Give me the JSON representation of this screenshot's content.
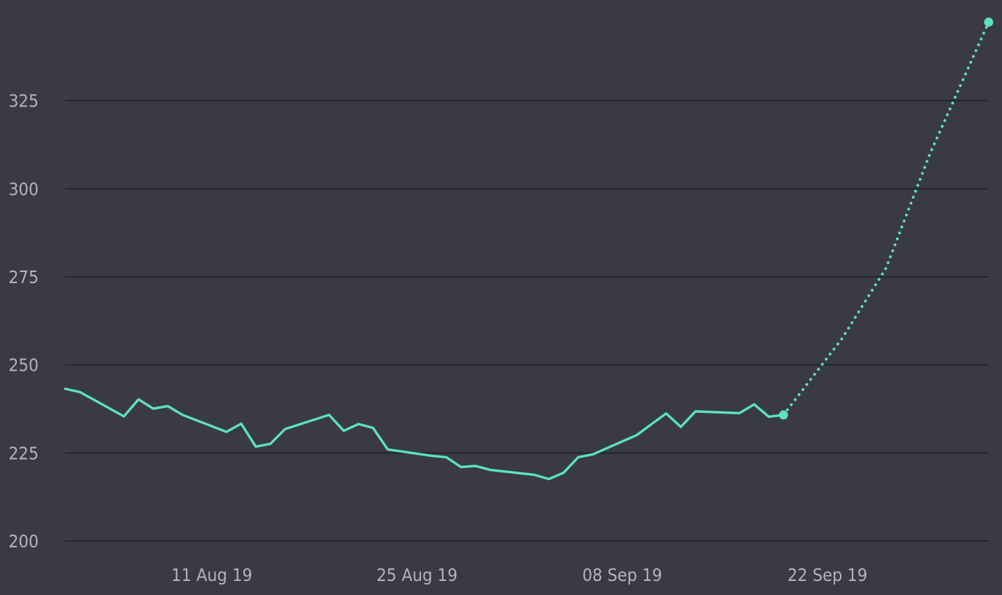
{
  "colors": {
    "background": "#3a3a45",
    "gridline": "#25252d",
    "series": "#5ce1c3",
    "tick_text": "#b3b3bd"
  },
  "chart_data": {
    "type": "line",
    "title": "",
    "xlabel": "",
    "ylabel": "",
    "x_axis": {
      "type": "date",
      "range": [
        "2019-08-01",
        "2019-10-03"
      ],
      "ticks": [
        {
          "date": "2019-08-11",
          "label": "11 Aug 19"
        },
        {
          "date": "2019-08-25",
          "label": "25 Aug 19"
        },
        {
          "date": "2019-09-08",
          "label": "08 Sep 19"
        },
        {
          "date": "2019-09-22",
          "label": "22 Sep 19"
        }
      ]
    },
    "y_axis": {
      "range": [
        200,
        350
      ],
      "ticks": [
        200,
        225,
        250,
        275,
        300,
        325
      ],
      "grid": true
    },
    "legend": "none",
    "series": [
      {
        "style": "solid",
        "points": [
          [
            "2019-08-01",
            243.2
          ],
          [
            "2019-08-02",
            242.3
          ],
          [
            "2019-08-05",
            235.4
          ],
          [
            "2019-08-06",
            240.2
          ],
          [
            "2019-08-07",
            237.6
          ],
          [
            "2019-08-08",
            238.3
          ],
          [
            "2019-08-09",
            235.8
          ],
          [
            "2019-08-12",
            231.0
          ],
          [
            "2019-08-13",
            233.3
          ],
          [
            "2019-08-14",
            226.8
          ],
          [
            "2019-08-15",
            227.6
          ],
          [
            "2019-08-16",
            231.8
          ],
          [
            "2019-08-19",
            235.8
          ],
          [
            "2019-08-20",
            231.3
          ],
          [
            "2019-08-21",
            233.2
          ],
          [
            "2019-08-22",
            232.1
          ],
          [
            "2019-08-23",
            226.0
          ],
          [
            "2019-08-26",
            224.2
          ],
          [
            "2019-08-27",
            223.8
          ],
          [
            "2019-08-28",
            221.0
          ],
          [
            "2019-08-29",
            221.3
          ],
          [
            "2019-08-30",
            220.2
          ],
          [
            "2019-09-02",
            218.8
          ],
          [
            "2019-09-03",
            217.6
          ],
          [
            "2019-09-04",
            219.4
          ],
          [
            "2019-09-05",
            223.8
          ],
          [
            "2019-09-06",
            224.6
          ],
          [
            "2019-09-09",
            230.1
          ],
          [
            "2019-09-10",
            233.2
          ],
          [
            "2019-09-11",
            236.2
          ],
          [
            "2019-09-12",
            232.4
          ],
          [
            "2019-09-13",
            236.8
          ],
          [
            "2019-09-16",
            236.3
          ],
          [
            "2019-09-17",
            238.8
          ],
          [
            "2019-09-18",
            235.3
          ],
          [
            "2019-09-19",
            235.8
          ]
        ]
      },
      {
        "style": "dotted",
        "points": [
          [
            "2019-09-19",
            235.8
          ],
          [
            "2019-09-23",
            257.5
          ],
          [
            "2019-09-26",
            277.5
          ],
          [
            "2019-09-29",
            310.0
          ],
          [
            "2019-10-03",
            347.3
          ]
        ]
      }
    ],
    "endpoint_markers": [
      [
        "2019-09-19",
        235.8
      ],
      [
        "2019-10-03",
        347.3
      ]
    ]
  }
}
